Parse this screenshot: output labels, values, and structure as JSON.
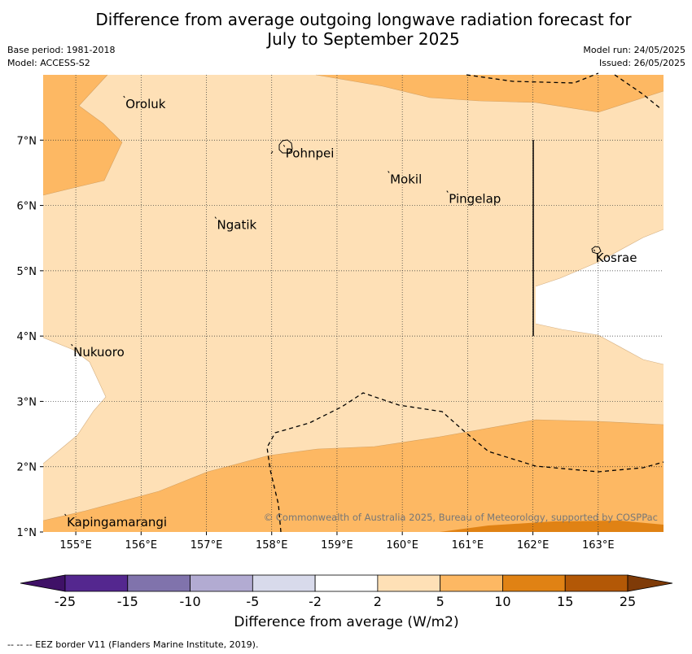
{
  "title_line1": "Difference from average outgoing longwave radiation forecast for",
  "title_line2": "July to September 2025",
  "meta_left": [
    "Base period: 1981-2018",
    "Model: ACCESS-S2"
  ],
  "meta_right": [
    "Model run: 24/05/2025",
    "Issued: 26/05/2025"
  ],
  "map": {
    "lon_ticks": [
      "155°E",
      "156°E",
      "157°E",
      "158°E",
      "159°E",
      "160°E",
      "161°E",
      "162°E",
      "163°E"
    ],
    "lat_ticks": [
      "7°N",
      "6°N",
      "5°N",
      "4°N",
      "3°N",
      "2°N",
      "1°N"
    ],
    "lon_range": [
      154.5,
      164.0
    ],
    "lat_range": [
      1.0,
      8.0
    ],
    "places": [
      {
        "name": "Oroluk",
        "lon": 155.75,
        "lat": 7.65
      },
      {
        "name": "Pohnpei",
        "lon": 158.2,
        "lat": 6.9
      },
      {
        "name": "Mokil",
        "lon": 159.8,
        "lat": 6.5
      },
      {
        "name": "Pingelap",
        "lon": 160.7,
        "lat": 6.2
      },
      {
        "name": "Ngatik",
        "lon": 157.15,
        "lat": 5.8
      },
      {
        "name": "Kosrae",
        "lon": 162.95,
        "lat": 5.3
      },
      {
        "name": "Nukuoro",
        "lon": 154.95,
        "lat": 3.85
      },
      {
        "name": "Kapingamarangi",
        "lon": 154.85,
        "lat": 1.25
      }
    ],
    "copyright": "© Commonwealth of Australia 2025, Bureau of Meteorology, supported by COSPPac"
  },
  "colorbar": {
    "ticks": [
      "-25",
      "-15",
      "-10",
      "-5",
      "-2",
      "2",
      "5",
      "10",
      "15",
      "25"
    ],
    "colors": [
      "#3f1167",
      "#54278f",
      "#8073ac",
      "#b2abd2",
      "#d8daeb",
      "#ffffff",
      "#fee0b6",
      "#fdb863",
      "#e08214",
      "#b35806",
      "#7f3b08"
    ],
    "label": "Difference from average (W/m2)"
  },
  "footer": "--  --  -- EEZ border V11 (Flanders Marine Institute, 2019)."
}
